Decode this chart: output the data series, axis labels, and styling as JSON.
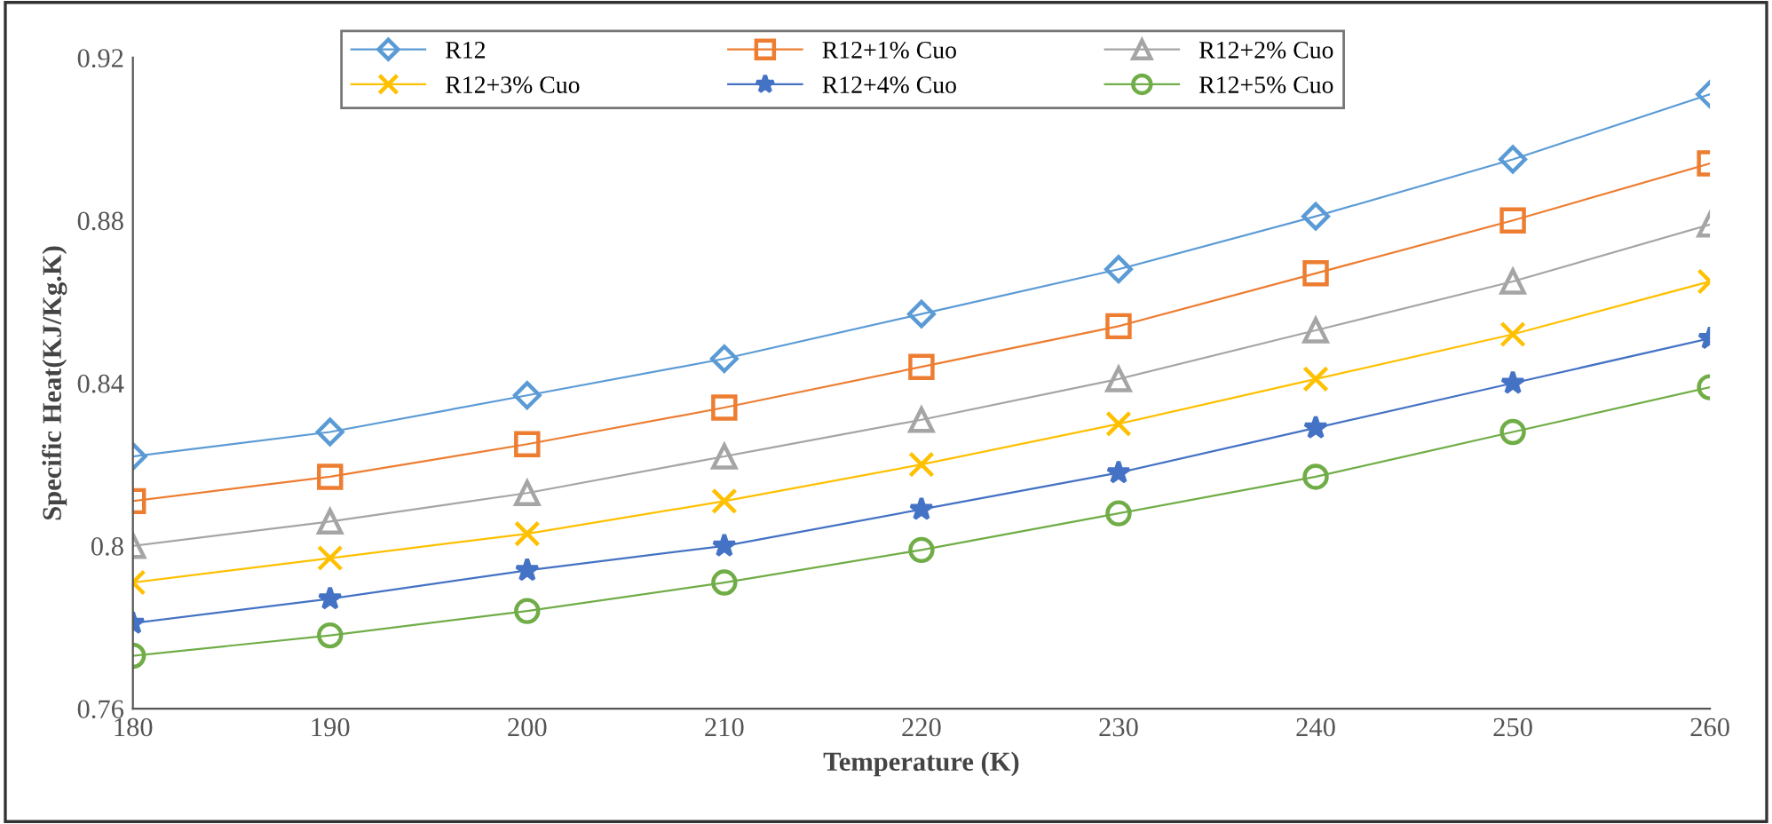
{
  "chart_data": {
    "type": "line",
    "xlabel": "Temperature (K)",
    "ylabel": "Specific Heat(KJ/Kg.K)",
    "x": [
      180,
      190,
      200,
      210,
      220,
      230,
      240,
      250,
      260
    ],
    "xlim": [
      180,
      260
    ],
    "xticks": [
      180,
      190,
      200,
      210,
      220,
      230,
      240,
      250,
      260
    ],
    "ylim": [
      0.76,
      0.92
    ],
    "yticks": [
      0.76,
      0.8,
      0.84,
      0.88,
      0.92
    ],
    "grid": false,
    "legend": "top",
    "line_style": "solid",
    "series": [
      {
        "name": "R12",
        "color": "#5b9bd5",
        "marker": "diamond",
        "values": [
          0.822,
          0.828,
          0.837,
          0.846,
          0.857,
          0.868,
          0.881,
          0.895,
          0.911
        ]
      },
      {
        "name": "R12+1% Cuo",
        "color": "#ed7d31",
        "marker": "square",
        "values": [
          0.811,
          0.817,
          0.825,
          0.834,
          0.844,
          0.854,
          0.867,
          0.88,
          0.894
        ]
      },
      {
        "name": "R12+2% Cuo",
        "color": "#a5a5a5",
        "marker": "triangle",
        "values": [
          0.8,
          0.806,
          0.813,
          0.822,
          0.831,
          0.841,
          0.853,
          0.865,
          0.879
        ]
      },
      {
        "name": "R12+3% Cuo",
        "color": "#ffc000",
        "marker": "cross",
        "values": [
          0.791,
          0.797,
          0.803,
          0.811,
          0.82,
          0.83,
          0.841,
          0.852,
          0.865
        ]
      },
      {
        "name": "R12+4% Cuo",
        "color": "#4472c4",
        "marker": "star",
        "values": [
          0.781,
          0.787,
          0.794,
          0.8,
          0.809,
          0.818,
          0.829,
          0.84,
          0.851
        ]
      },
      {
        "name": "R12+5% Cuo",
        "color": "#70ad47",
        "marker": "circle",
        "values": [
          0.773,
          0.778,
          0.784,
          0.791,
          0.799,
          0.808,
          0.817,
          0.828,
          0.839
        ]
      }
    ]
  }
}
